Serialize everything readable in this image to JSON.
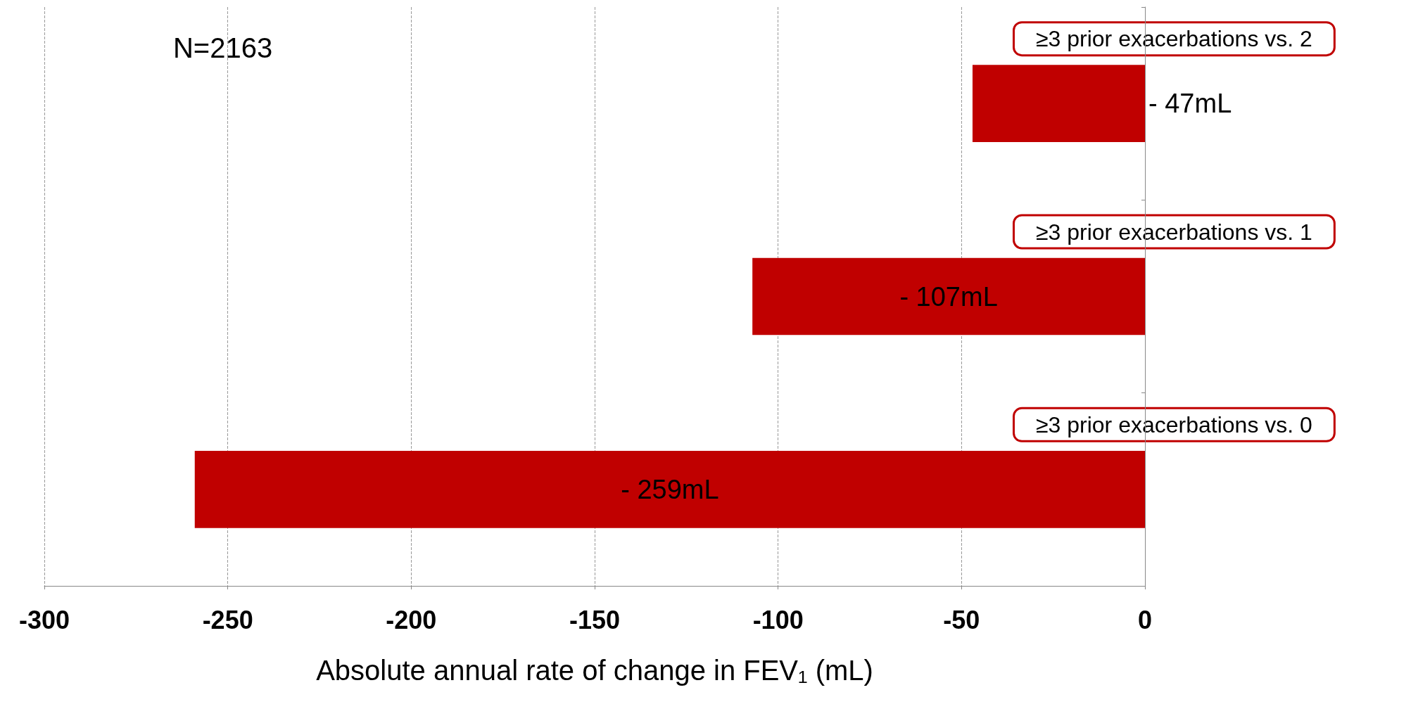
{
  "chart_data": {
    "type": "bar",
    "orientation": "horizontal",
    "categories": [
      "≥3 prior exacerbations vs. 2",
      "≥3 prior exacerbations vs. 1",
      "≥3 prior exacerbations vs. 0"
    ],
    "values": [
      -47,
      -107,
      -259
    ],
    "value_labels": [
      "- 47mL",
      "- 107mL",
      "- 259mL"
    ],
    "color": "#c00000",
    "xlabel": "Absolute annual rate of change in FEV₁ (mL)",
    "xlim": [
      -300,
      0
    ],
    "xticks": [
      -300,
      -250,
      -200,
      -150,
      -100,
      -50,
      0
    ],
    "grid": "x",
    "annotations": [
      "N=2163"
    ]
  }
}
